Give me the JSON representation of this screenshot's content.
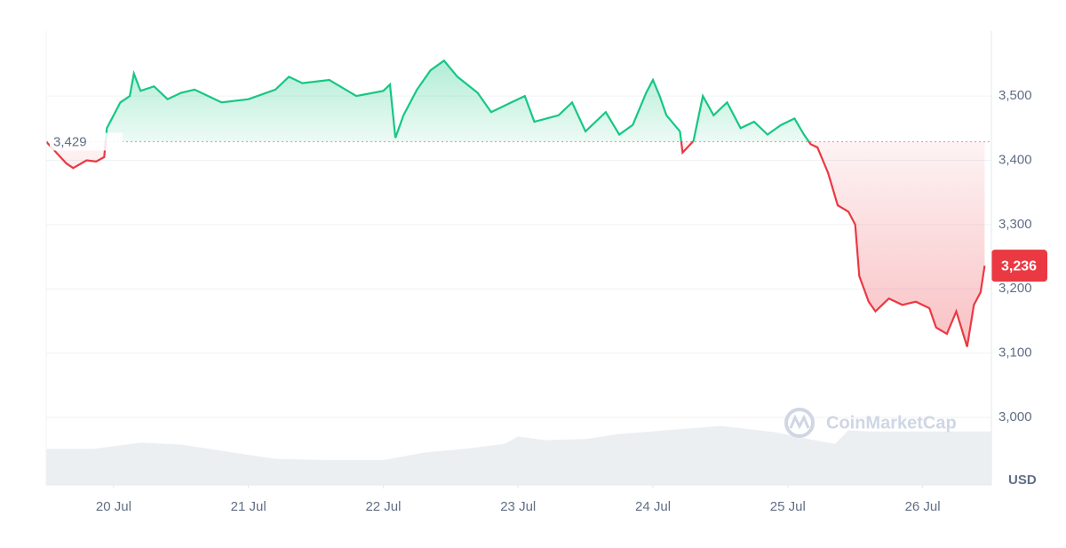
{
  "chart_data": {
    "type": "line",
    "x": [
      19.5,
      19.65,
      19.7,
      19.8,
      19.87,
      19.93,
      19.95,
      20.0,
      20.05,
      20.12,
      20.15,
      20.2,
      20.3,
      20.4,
      20.5,
      20.6,
      20.8,
      21.0,
      21.2,
      21.3,
      21.4,
      21.6,
      21.8,
      22.0,
      22.05,
      22.09,
      22.15,
      22.25,
      22.35,
      22.45,
      22.55,
      22.7,
      22.8,
      22.95,
      23.05,
      23.12,
      23.3,
      23.4,
      23.5,
      23.65,
      23.75,
      23.85,
      23.95,
      24.0,
      24.05,
      24.1,
      24.2,
      24.22,
      24.3,
      24.37,
      24.45,
      24.55,
      24.65,
      24.75,
      24.85,
      24.95,
      25.05,
      25.12,
      25.17,
      25.22,
      25.3,
      25.37,
      25.45,
      25.5,
      25.53,
      25.6,
      25.65,
      25.75,
      25.85,
      25.95,
      26.05,
      26.1,
      26.18,
      26.25,
      26.33,
      26.38,
      26.43,
      26.46
    ],
    "values": [
      3429,
      3395,
      3388,
      3400,
      3398,
      3405,
      3450,
      3470,
      3490,
      3500,
      3535,
      3508,
      3515,
      3495,
      3505,
      3510,
      3490,
      3495,
      3510,
      3530,
      3520,
      3525,
      3500,
      3508,
      3518,
      3435,
      3470,
      3510,
      3540,
      3555,
      3530,
      3505,
      3475,
      3490,
      3500,
      3460,
      3470,
      3490,
      3445,
      3475,
      3440,
      3455,
      3505,
      3525,
      3500,
      3470,
      3445,
      3412,
      3430,
      3500,
      3470,
      3490,
      3450,
      3460,
      3440,
      3455,
      3465,
      3440,
      3425,
      3420,
      3380,
      3330,
      3320,
      3300,
      3220,
      3180,
      3165,
      3185,
      3175,
      3180,
      3170,
      3140,
      3130,
      3165,
      3110,
      3175,
      3195,
      3236
    ],
    "color_up": "#16c784",
    "color_down": "#ea3943",
    "baseline": {
      "value": 3429,
      "label": "3,429"
    },
    "last_value_label": "3,236",
    "xlim": [
      19.5,
      26.51
    ],
    "xticks": [
      {
        "value": 20,
        "label": "20 Jul"
      },
      {
        "value": 21,
        "label": "21 Jul"
      },
      {
        "value": 22,
        "label": "22 Jul"
      },
      {
        "value": 23,
        "label": "23 Jul"
      },
      {
        "value": 24,
        "label": "24 Jul"
      },
      {
        "value": 25,
        "label": "25 Jul"
      },
      {
        "value": 26,
        "label": "26 Jul"
      }
    ],
    "ylim": [
      2895,
      3601
    ],
    "yticks": [
      {
        "value": 3000,
        "label": "3,000"
      },
      {
        "value": 3100,
        "label": "3,100"
      },
      {
        "value": 3200,
        "label": "3,200"
      },
      {
        "value": 3300,
        "label": "3,300"
      },
      {
        "value": 3400,
        "label": "3,400"
      },
      {
        "value": 3500,
        "label": "3,500"
      }
    ],
    "y_unit": "USD",
    "grid": true,
    "watermark": "CoinMarketCap",
    "volume": {
      "x": [
        19.5,
        19.85,
        20.2,
        20.5,
        20.8,
        21.2,
        21.6,
        22.0,
        22.3,
        22.6,
        22.9,
        23.0,
        23.2,
        23.5,
        23.75,
        24.1,
        24.5,
        24.9,
        25.2,
        25.35,
        25.45,
        25.6,
        26.0,
        26.51
      ],
      "values": [
        58,
        58,
        68,
        65,
        55,
        42,
        40,
        40,
        52,
        58,
        66,
        78,
        72,
        74,
        82,
        88,
        95,
        85,
        72,
        66,
        88,
        86,
        86,
        86
      ],
      "ylim": [
        0,
        100
      ],
      "color": "#eceff2"
    }
  }
}
